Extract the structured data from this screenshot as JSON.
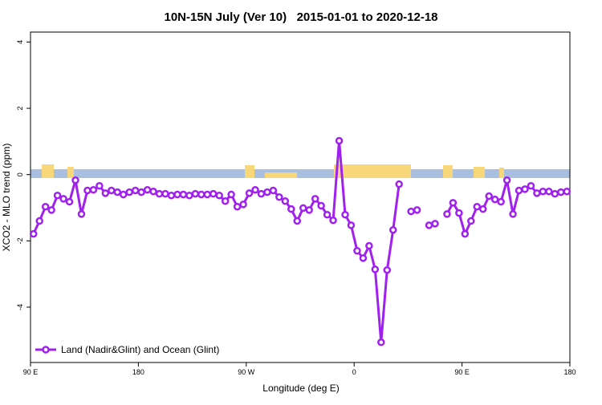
{
  "chart_data": {
    "type": "line",
    "title": "10N-15N July (Ver 10)   2015-01-01 to 2020-12-18",
    "xlabel": "Longitude (deg E)",
    "ylabel": "XCO2 - MLO trend (ppm)",
    "x": [
      92.5,
      97.5,
      102.5,
      107.5,
      112.5,
      117.5,
      122.5,
      127.5,
      132.5,
      137.5,
      142.5,
      147.5,
      152.5,
      157.5,
      162.5,
      167.5,
      172.5,
      177.5,
      182.5,
      187.5,
      192.5,
      197.5,
      202.5,
      207.5,
      212.5,
      217.5,
      222.5,
      227.5,
      232.5,
      237.5,
      242.5,
      247.5,
      252.5,
      257.5,
      262.5,
      267.5,
      272.5,
      277.5,
      282.5,
      287.5,
      292.5,
      297.5,
      302.5,
      307.5,
      312.5,
      317.5,
      322.5,
      327.5,
      332.5,
      337.5,
      342.5,
      347.5,
      352.5,
      357.5,
      362.5,
      367.5,
      372.5,
      377.5,
      382.5,
      387.5,
      392.5,
      397.5,
      402.5,
      407.5,
      412.5,
      417.5,
      422.5,
      427.5,
      432.5,
      437.5,
      442.5,
      447.5,
      452.5,
      457.5,
      462.5,
      467.5,
      472.5,
      477.5,
      482.5,
      487.5,
      492.5,
      497.5,
      502.5,
      507.5,
      512.5,
      517.5,
      522.5,
      527.5,
      532.5,
      537.5
    ],
    "series": [
      {
        "name": "Land (Nadir&Glint) and Ocean (Glint)",
        "color": "#a020f0",
        "values": [
          -1.79,
          -1.4,
          -0.97,
          -1.07,
          -0.63,
          -0.73,
          -0.82,
          -0.17,
          -1.19,
          -0.48,
          -0.46,
          -0.34,
          -0.56,
          -0.48,
          -0.53,
          -0.6,
          -0.53,
          -0.48,
          -0.53,
          -0.46,
          -0.51,
          -0.58,
          -0.58,
          -0.63,
          -0.6,
          -0.6,
          -0.63,
          -0.58,
          -0.6,
          -0.6,
          -0.58,
          -0.63,
          -0.8,
          -0.6,
          -0.97,
          -0.9,
          -0.56,
          -0.46,
          -0.58,
          -0.53,
          -0.48,
          -0.68,
          -0.8,
          -1.04,
          -1.4,
          -1.01,
          -1.07,
          -0.73,
          -0.94,
          -1.21,
          -1.38,
          1.02,
          -1.21,
          -1.53,
          -2.3,
          -2.52,
          -2.15,
          -2.86,
          -5.06,
          -2.88,
          -1.67,
          -0.29,
          null,
          -1.11,
          -1.07,
          null,
          -1.53,
          -1.48,
          null,
          -1.19,
          -0.85,
          -1.16,
          -1.79,
          -1.4,
          -0.97,
          -1.04,
          -0.65,
          -0.75,
          -0.82,
          -0.17,
          -1.19,
          -0.48,
          -0.44,
          -0.34,
          -0.56,
          -0.51,
          -0.51,
          -0.58,
          -0.53,
          -0.51
        ]
      }
    ],
    "xlim": [
      90,
      540
    ],
    "xticks": [
      {
        "value": 90,
        "label": "90 E"
      },
      180,
      {
        "value": 270,
        "label": "90 W"
      },
      {
        "value": 360,
        "label": "0"
      },
      {
        "value": 450,
        "label": "90 E"
      },
      {
        "value": 540,
        "label": "180"
      }
    ],
    "ylim": [
      -5.67,
      4.3
    ],
    "yticks": [
      -4,
      -2,
      0,
      2,
      4
    ],
    "legend": "bottom-left"
  }
}
